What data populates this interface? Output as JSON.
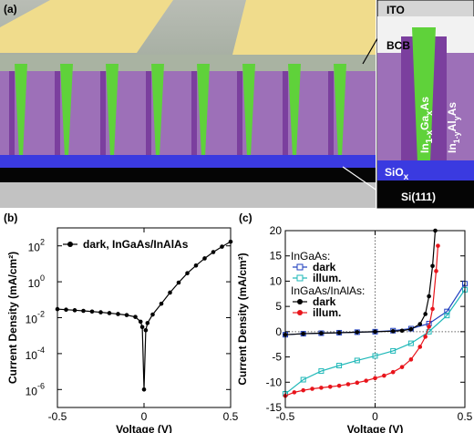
{
  "panel_a": {
    "panel_label": "(a)",
    "ito": "ITO",
    "bcb": "BCB",
    "ingaas": [
      "In",
      "1-x",
      "Ga",
      "x",
      "As"
    ],
    "inalas": [
      "In",
      "1-y",
      "Al",
      "y",
      "As"
    ],
    "siox": [
      "SiO",
      "x"
    ],
    "si": "Si(111)"
  },
  "chart_data": [
    {
      "type": "line",
      "panel_label": "(b)",
      "xlabel": "Voltage (V)",
      "ylabel": "Current Density (mA/cm²)",
      "log_y": true,
      "xlim": [
        -0.5,
        0.5
      ],
      "ylim": [
        1e-07,
        1000
      ],
      "xticks": [
        -0.5,
        0,
        0.5
      ],
      "yticks": [
        {
          "value": 1e-06,
          "label": "10",
          "exponent": "-6"
        },
        {
          "value": 0.0001,
          "label": "10",
          "exponent": "-4"
        },
        {
          "value": 0.01,
          "label": "10",
          "exponent": "-2"
        },
        {
          "value": 1,
          "label": "10",
          "exponent": "0"
        },
        {
          "value": 100,
          "label": "10",
          "exponent": "2"
        }
      ],
      "series": [
        {
          "name": "dark, InGaAs/InAlAs",
          "color": "#000000",
          "marker": "circle",
          "x": [
            -0.5,
            -0.45,
            -0.4,
            -0.35,
            -0.3,
            -0.25,
            -0.2,
            -0.15,
            -0.1,
            -0.05,
            -0.02,
            -0.01,
            0,
            0.01,
            0.02,
            0.05,
            0.1,
            0.15,
            0.2,
            0.25,
            0.3,
            0.35,
            0.4,
            0.45,
            0.5
          ],
          "values": [
            0.03,
            0.028,
            0.026,
            0.024,
            0.022,
            0.02,
            0.018,
            0.016,
            0.014,
            0.011,
            0.006,
            0.003,
            1e-06,
            0.002,
            0.005,
            0.015,
            0.06,
            0.25,
            0.9,
            3,
            8,
            20,
            45,
            90,
            170
          ]
        }
      ]
    },
    {
      "type": "line",
      "panel_label": "(c)",
      "xlabel": "Voltage (V)",
      "ylabel": "Current Density (mA/cm²)",
      "log_y": false,
      "zero_lines": true,
      "xlim": [
        -0.5,
        0.5
      ],
      "ylim": [
        -15,
        20
      ],
      "xticks": [
        -0.5,
        0,
        0.5
      ],
      "yticks": [
        -15,
        -10,
        -5,
        0,
        5,
        10,
        15,
        20
      ],
      "legend_groups": [
        "InGaAs:",
        "InGaAs/InAlAs:"
      ],
      "series": [
        {
          "name": "dark",
          "group": 0,
          "color": "#1f3fbf",
          "marker": "square-open",
          "x": [
            -0.5,
            -0.4,
            -0.3,
            -0.2,
            -0.1,
            0,
            0.1,
            0.2,
            0.3,
            0.4,
            0.5
          ],
          "values": [
            -0.6,
            -0.4,
            -0.3,
            -0.2,
            -0.1,
            0,
            0.2,
            0.6,
            1.6,
            4,
            9.5
          ]
        },
        {
          "name": "illum.",
          "group": 0,
          "color": "#1fb8b8",
          "marker": "square-open",
          "x": [
            -0.5,
            -0.4,
            -0.3,
            -0.2,
            -0.1,
            0,
            0.1,
            0.2,
            0.3,
            0.4,
            0.5
          ],
          "values": [
            -12.3,
            -9.5,
            -7.8,
            -6.7,
            -5.7,
            -4.8,
            -3.8,
            -2.3,
            0,
            3.2,
            8.3
          ]
        },
        {
          "name": "dark",
          "group": 1,
          "color": "#000000",
          "marker": "circle",
          "x": [
            -0.5,
            -0.4,
            -0.3,
            -0.2,
            -0.1,
            0,
            0.1,
            0.15,
            0.2,
            0.25,
            0.28,
            0.3,
            0.32,
            0.335
          ],
          "values": [
            -0.6,
            -0.4,
            -0.3,
            -0.2,
            -0.1,
            0,
            0.1,
            0.2,
            0.5,
            1.5,
            3.5,
            7,
            13,
            20
          ]
        },
        {
          "name": "illum.",
          "group": 1,
          "color": "#e8141b",
          "marker": "circle",
          "x": [
            -0.5,
            -0.45,
            -0.4,
            -0.35,
            -0.3,
            -0.25,
            -0.2,
            -0.15,
            -0.1,
            -0.05,
            0,
            0.05,
            0.1,
            0.15,
            0.2,
            0.25,
            0.28,
            0.3,
            0.32,
            0.34,
            0.35
          ],
          "values": [
            -12.7,
            -12,
            -11.6,
            -11.3,
            -11.1,
            -10.9,
            -10.7,
            -10.4,
            -10.1,
            -9.7,
            -9.2,
            -8.7,
            -8,
            -7,
            -5.5,
            -3,
            -1,
            1,
            4.5,
            12,
            17
          ]
        }
      ]
    }
  ]
}
